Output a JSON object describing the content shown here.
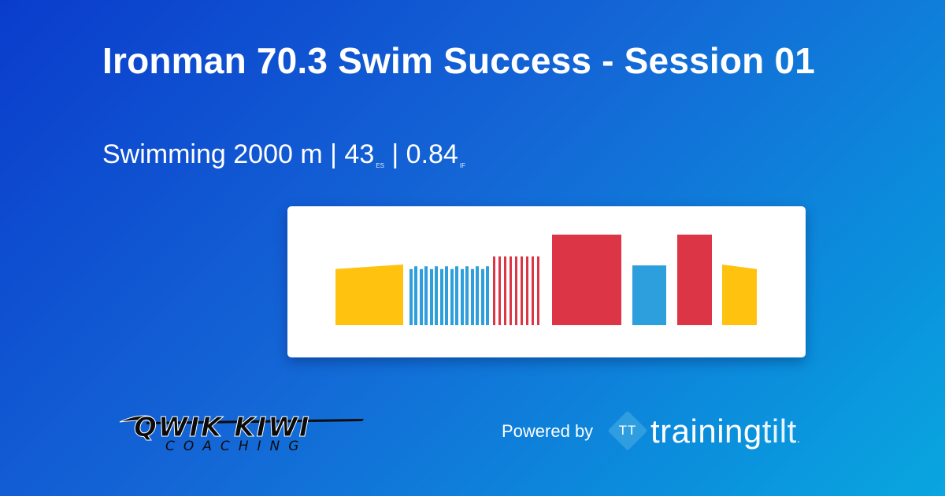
{
  "workout": {
    "title": "Ironman 70.3 Swim Success - Session 01",
    "sport": "Swimming",
    "distance": "2000 m",
    "es_value": "43",
    "es_unit": "ES",
    "if_value": "0.84",
    "if_unit": "IF",
    "separator": "|"
  },
  "chart_data": {
    "type": "bar",
    "intervals": [
      {
        "zone": "warmup",
        "start": 0,
        "end": 86,
        "h_start": 0.62,
        "h_end": 0.67
      },
      {
        "zone": "blue",
        "start": 94,
        "end": 98,
        "h_start": 0.62,
        "h_end": 0.62
      },
      {
        "zone": "blue",
        "start": 100,
        "end": 104,
        "h_start": 0.65,
        "h_end": 0.65
      },
      {
        "zone": "blue",
        "start": 107,
        "end": 111,
        "h_start": 0.62,
        "h_end": 0.62
      },
      {
        "zone": "blue",
        "start": 113,
        "end": 117,
        "h_start": 0.65,
        "h_end": 0.65
      },
      {
        "zone": "blue",
        "start": 120,
        "end": 124,
        "h_start": 0.62,
        "h_end": 0.62
      },
      {
        "zone": "blue",
        "start": 126,
        "end": 130,
        "h_start": 0.65,
        "h_end": 0.65
      },
      {
        "zone": "blue",
        "start": 133,
        "end": 137,
        "h_start": 0.62,
        "h_end": 0.62
      },
      {
        "zone": "blue",
        "start": 139,
        "end": 143,
        "h_start": 0.65,
        "h_end": 0.65
      },
      {
        "zone": "blue",
        "start": 146,
        "end": 150,
        "h_start": 0.62,
        "h_end": 0.62
      },
      {
        "zone": "blue",
        "start": 152,
        "end": 156,
        "h_start": 0.65,
        "h_end": 0.65
      },
      {
        "zone": "blue",
        "start": 159,
        "end": 163,
        "h_start": 0.62,
        "h_end": 0.62
      },
      {
        "zone": "blue",
        "start": 165,
        "end": 169,
        "h_start": 0.65,
        "h_end": 0.65
      },
      {
        "zone": "blue",
        "start": 172,
        "end": 176,
        "h_start": 0.62,
        "h_end": 0.62
      },
      {
        "zone": "blue",
        "start": 178,
        "end": 182,
        "h_start": 0.65,
        "h_end": 0.65
      },
      {
        "zone": "blue",
        "start": 185,
        "end": 189,
        "h_start": 0.62,
        "h_end": 0.62
      },
      {
        "zone": "blue",
        "start": 191,
        "end": 195,
        "h_start": 0.65,
        "h_end": 0.65
      },
      {
        "zone": "red",
        "start": 200,
        "end": 203,
        "h_start": 0.76,
        "h_end": 0.76
      },
      {
        "zone": "red",
        "start": 207,
        "end": 210,
        "h_start": 0.76,
        "h_end": 0.76
      },
      {
        "zone": "red",
        "start": 214,
        "end": 217,
        "h_start": 0.76,
        "h_end": 0.76
      },
      {
        "zone": "red",
        "start": 221,
        "end": 224,
        "h_start": 0.76,
        "h_end": 0.76
      },
      {
        "zone": "red",
        "start": 228,
        "end": 231,
        "h_start": 0.76,
        "h_end": 0.76
      },
      {
        "zone": "red",
        "start": 235,
        "end": 238,
        "h_start": 0.76,
        "h_end": 0.76
      },
      {
        "zone": "red",
        "start": 242,
        "end": 245,
        "h_start": 0.76,
        "h_end": 0.76
      },
      {
        "zone": "red",
        "start": 249,
        "end": 252,
        "h_start": 0.76,
        "h_end": 0.76
      },
      {
        "zone": "red",
        "start": 256,
        "end": 259,
        "h_start": 0.76,
        "h_end": 0.76
      },
      {
        "zone": "red",
        "start": 275,
        "end": 363,
        "h_start": 1.0,
        "h_end": 1.0
      },
      {
        "zone": "blue",
        "start": 377,
        "end": 420,
        "h_start": 0.66,
        "h_end": 0.66
      },
      {
        "zone": "red",
        "start": 434,
        "end": 478,
        "h_start": 1.0,
        "h_end": 1.0
      },
      {
        "zone": "warmup",
        "start": 491,
        "end": 535,
        "h_start": 0.67,
        "h_end": 0.62
      }
    ],
    "zone_colors": {
      "warmup": "#ffc20e",
      "blue": "#2c9fdc",
      "red": "#dc3545"
    }
  },
  "footer": {
    "coach_logo_line1": "QWIK KIWI",
    "coach_logo_line2": "COACHING",
    "powered_by": "Powered by",
    "brand_icon": "TT",
    "brand_part1": "training",
    "brand_part2": "tilt",
    "brand_dot": "."
  },
  "colors": {
    "background_start": "#0a3ccc",
    "background_end": "#09a6e0",
    "card": "#ffffff",
    "brand_icon": "#2f9ee0"
  }
}
